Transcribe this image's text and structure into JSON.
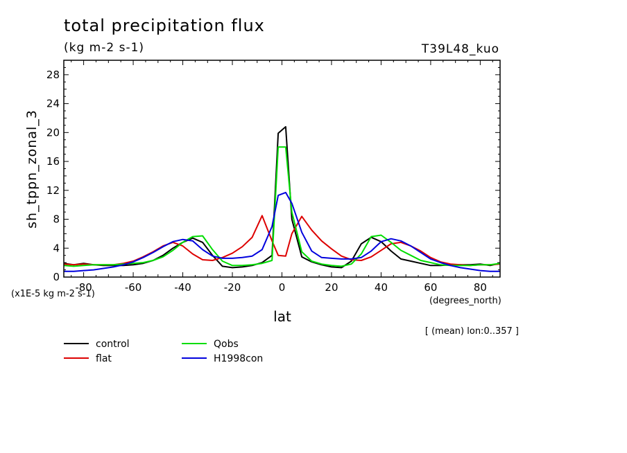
{
  "chart_data": {
    "type": "line",
    "title": "total precipitation flux",
    "subtitle": "(kg m-2 s-1)",
    "run_label": "T39L48_kuo",
    "xlabel": "lat",
    "x_units": "(degrees_north)",
    "ylabel": "sh_tppn_zonal_3",
    "y_scale_note": "(x1E-5 kg m-2 s-1)",
    "averaging_note": "[ (mean) lon:0..357 ]",
    "xlim": [
      -88,
      88
    ],
    "ylim": [
      0,
      30
    ],
    "xticks": [
      -80,
      -60,
      -40,
      -20,
      0,
      20,
      40,
      60,
      80
    ],
    "yticks": [
      0,
      4,
      8,
      12,
      16,
      20,
      24,
      28
    ],
    "x": [
      -88,
      -84,
      -80,
      -76,
      -72,
      -68,
      -64,
      -60,
      -56,
      -52,
      -48,
      -44,
      -40,
      -36,
      -32,
      -28,
      -24,
      -20,
      -16,
      -12,
      -8,
      -4,
      -1.5,
      1.5,
      4,
      8,
      12,
      16,
      20,
      24,
      28,
      32,
      36,
      40,
      44,
      48,
      52,
      56,
      60,
      64,
      68,
      72,
      76,
      80,
      84,
      88
    ],
    "series": [
      {
        "name": "control",
        "color": "#000000",
        "values": [
          1.9,
          1.7,
          1.9,
          1.7,
          1.6,
          1.6,
          1.6,
          1.7,
          1.9,
          2.3,
          3.0,
          4.0,
          4.8,
          5.4,
          4.8,
          3.0,
          1.5,
          1.3,
          1.4,
          1.6,
          2.0,
          3.0,
          19.9,
          20.8,
          8.0,
          2.8,
          2.1,
          1.7,
          1.4,
          1.3,
          2.2,
          4.6,
          5.5,
          4.9,
          3.6,
          2.5,
          2.2,
          1.9,
          1.6,
          1.6,
          1.7,
          1.7,
          1.7,
          1.8,
          1.6,
          1.9
        ]
      },
      {
        "name": "flat",
        "color": "#dd0000",
        "values": [
          1.8,
          1.7,
          1.8,
          1.7,
          1.7,
          1.7,
          1.9,
          2.2,
          2.8,
          3.5,
          4.3,
          4.8,
          4.3,
          3.2,
          2.4,
          2.3,
          2.7,
          3.3,
          4.2,
          5.5,
          8.5,
          5.0,
          3.0,
          2.9,
          6.0,
          8.4,
          6.5,
          5.0,
          3.9,
          2.9,
          2.4,
          2.3,
          2.8,
          3.7,
          4.6,
          4.8,
          4.3,
          3.6,
          2.7,
          2.1,
          1.8,
          1.7,
          1.6,
          1.7,
          1.7,
          1.8
        ]
      },
      {
        "name": "Qobs",
        "color": "#00dd00",
        "values": [
          1.6,
          1.5,
          1.6,
          1.7,
          1.7,
          1.7,
          1.8,
          1.9,
          2.0,
          2.3,
          2.8,
          3.7,
          4.8,
          5.6,
          5.7,
          3.8,
          2.2,
          1.6,
          1.6,
          1.7,
          1.9,
          2.3,
          18.0,
          18.0,
          9.0,
          3.5,
          2.2,
          1.8,
          1.6,
          1.5,
          1.8,
          3.2,
          5.6,
          5.8,
          4.8,
          3.7,
          3.0,
          2.3,
          2.0,
          1.7,
          1.6,
          1.6,
          1.6,
          1.7,
          1.7,
          1.9
        ]
      },
      {
        "name": "H1998con",
        "color": "#0000dd",
        "values": [
          0.8,
          0.8,
          0.9,
          1.0,
          1.2,
          1.4,
          1.7,
          2.1,
          2.7,
          3.4,
          4.2,
          4.9,
          5.2,
          5.0,
          3.8,
          2.9,
          2.6,
          2.6,
          2.7,
          2.9,
          3.8,
          7.0,
          11.3,
          11.7,
          10.2,
          6.2,
          3.6,
          2.7,
          2.6,
          2.5,
          2.5,
          2.7,
          3.6,
          4.9,
          5.3,
          5.0,
          4.3,
          3.4,
          2.5,
          2.0,
          1.6,
          1.3,
          1.1,
          0.9,
          0.8,
          0.8
        ]
      }
    ]
  }
}
